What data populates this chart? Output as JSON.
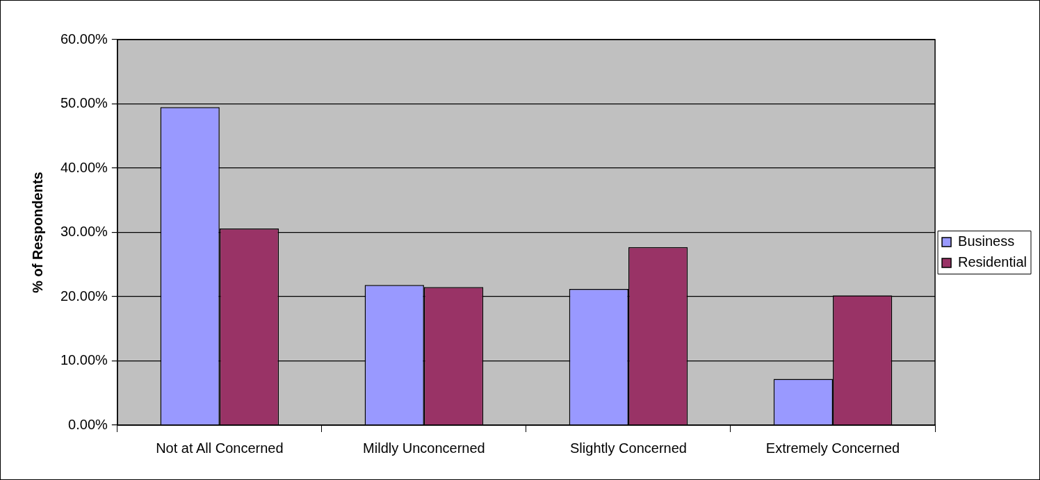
{
  "chart_data": {
    "type": "bar",
    "ylabel": "% of Respondents",
    "categories": [
      "Not at All Concerned",
      "Mildly Unconcerned",
      "Slightly Concerned",
      "Extremely Concerned"
    ],
    "series": [
      {
        "name": "Business",
        "color": "#9999ff",
        "values": [
          49.5,
          21.8,
          21.2,
          7.2
        ]
      },
      {
        "name": "Residential",
        "color": "#993366",
        "values": [
          30.6,
          21.5,
          27.7,
          20.2
        ]
      }
    ],
    "ylim": [
      0,
      60
    ],
    "yticks": [
      {
        "value": 0,
        "label": "0.00%"
      },
      {
        "value": 10,
        "label": "10.00%"
      },
      {
        "value": 20,
        "label": "20.00%"
      },
      {
        "value": 30,
        "label": "30.00%"
      },
      {
        "value": 40,
        "label": "40.00%"
      },
      {
        "value": 50,
        "label": "50.00%"
      },
      {
        "value": 60,
        "label": "60.00%"
      }
    ],
    "grid": "y",
    "legend": "right"
  }
}
